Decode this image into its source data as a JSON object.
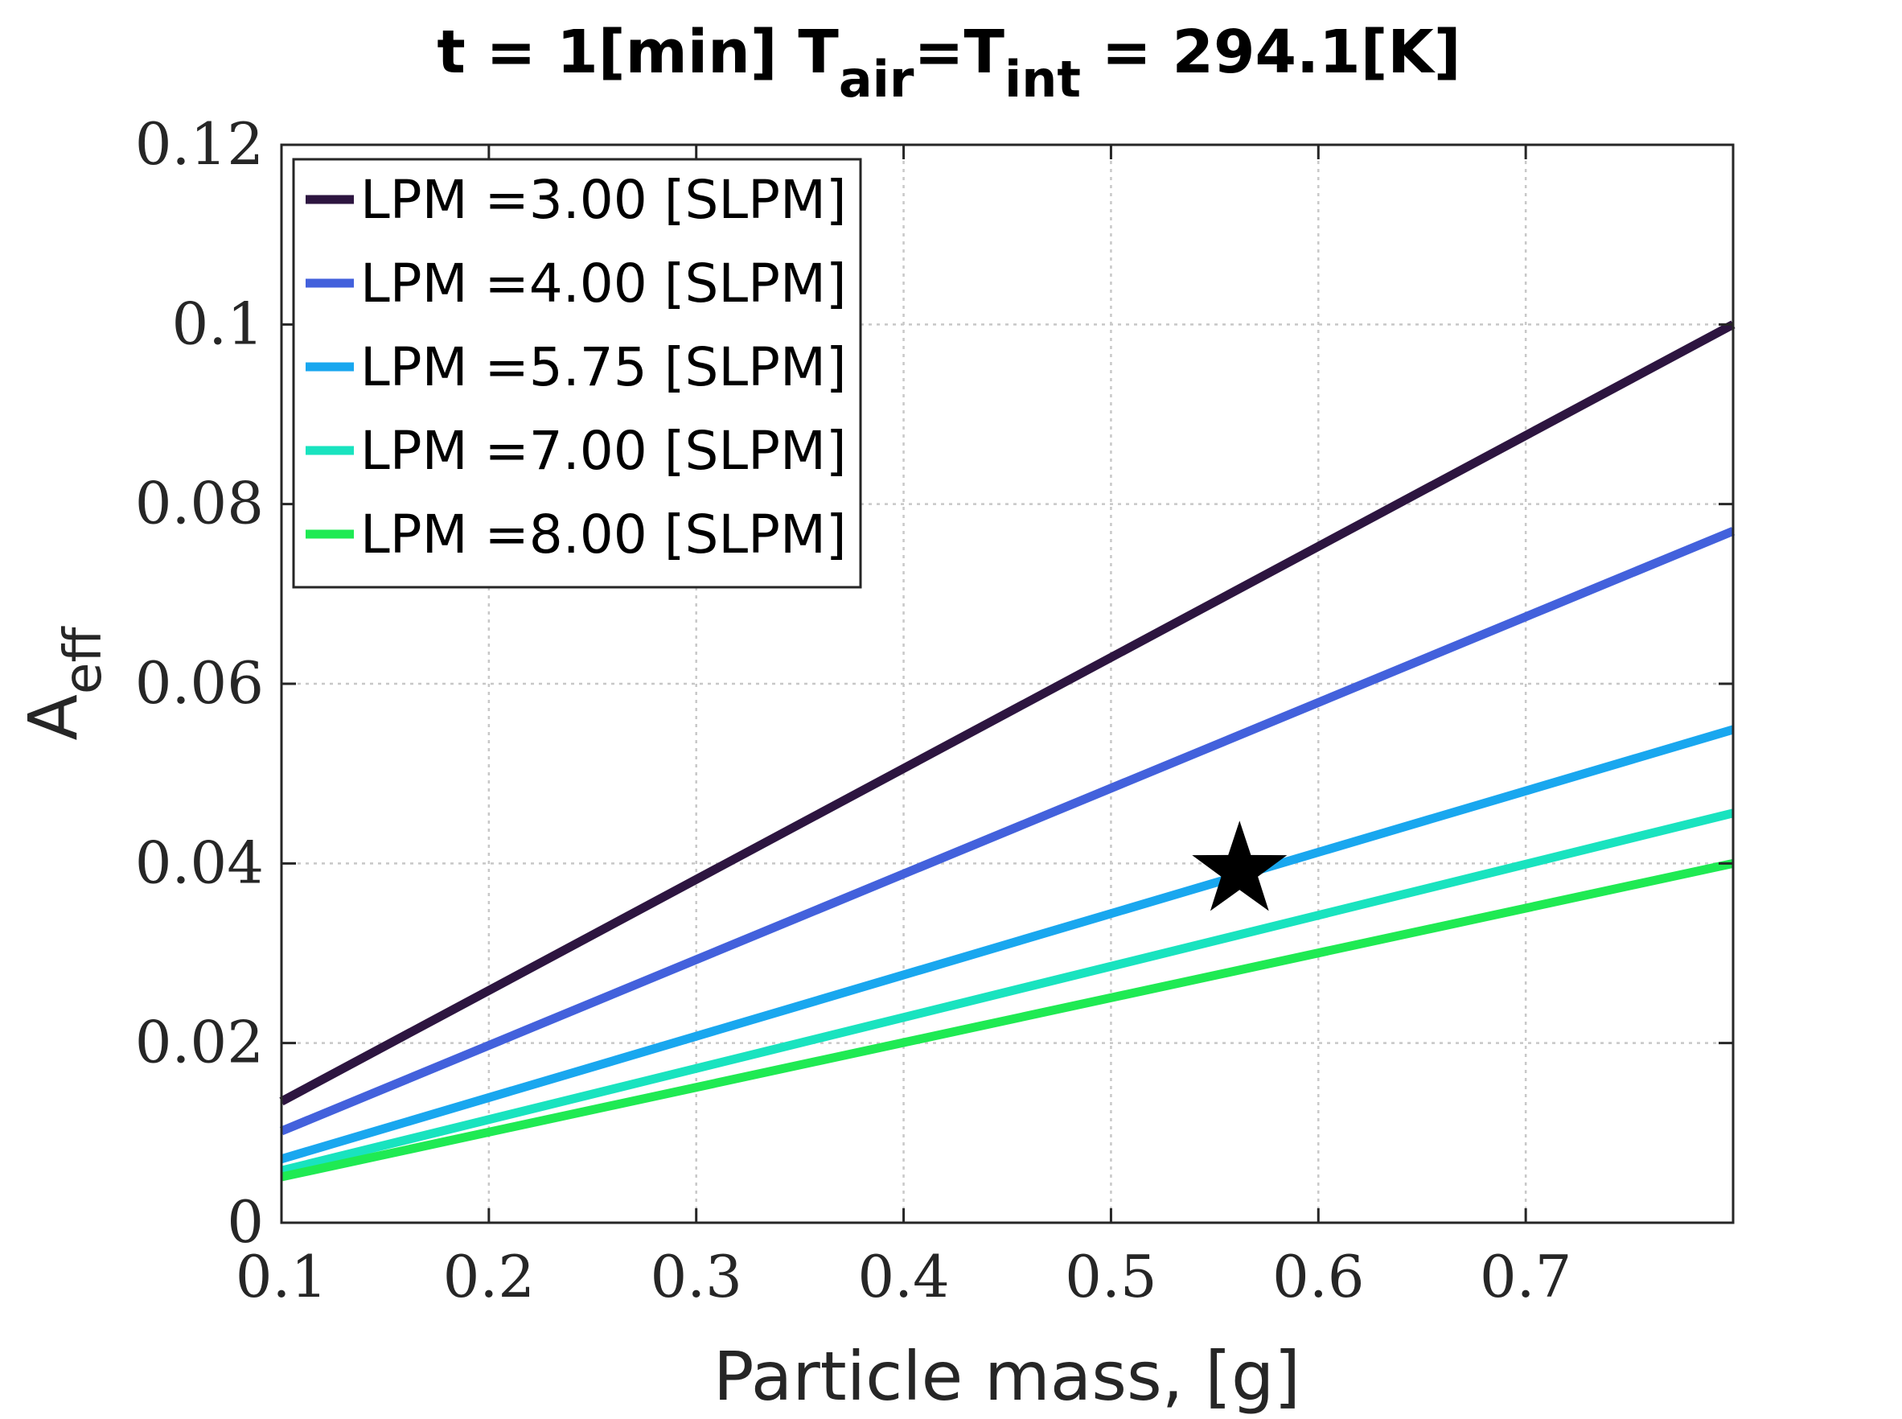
{
  "chart_data": {
    "type": "line",
    "title": {
      "main": "t = 1[min] T",
      "sub1": "air",
      "mid": "=T",
      "sub2": "int",
      "tail": " = 294.1[K]"
    },
    "xlabel": "Particle mass, [g]",
    "ylabel": {
      "base": "A",
      "sub": "eff"
    },
    "xlim": [
      0.1,
      0.8
    ],
    "ylim": [
      0,
      0.12
    ],
    "x_ticks": [
      0.1,
      0.2,
      0.3,
      0.4,
      0.5,
      0.6,
      0.7
    ],
    "x_tick_labels": [
      "0.1",
      "0.2",
      "0.3",
      "0.4",
      "0.5",
      "0.6",
      "0.7"
    ],
    "y_ticks": [
      0,
      0.02,
      0.04,
      0.06,
      0.08,
      0.1,
      0.12
    ],
    "y_tick_labels": [
      "0",
      "0.02",
      "0.04",
      "0.06",
      "0.08",
      "0.1",
      "0.12"
    ],
    "grid": true,
    "legend_position": "top-left",
    "series": [
      {
        "name": "LPM =3.00 [SLPM]",
        "color": "#2d1540",
        "x": [
          0.1,
          0.8
        ],
        "y": [
          0.0135,
          0.1
        ]
      },
      {
        "name": "LPM =4.00 [SLPM]",
        "color": "#4361dc",
        "x": [
          0.1,
          0.8
        ],
        "y": [
          0.0102,
          0.077
        ]
      },
      {
        "name": "LPM =5.75 [SLPM]",
        "color": "#19a7ef",
        "x": [
          0.1,
          0.8
        ],
        "y": [
          0.0071,
          0.0549
        ]
      },
      {
        "name": "LPM =7.00 [SLPM]",
        "color": "#19e3bf",
        "x": [
          0.1,
          0.8
        ],
        "y": [
          0.0058,
          0.0456
        ]
      },
      {
        "name": "LPM =8.00 [SLPM]",
        "color": "#1fea53",
        "x": [
          0.1,
          0.8
        ],
        "y": [
          0.0051,
          0.04
        ]
      }
    ],
    "marker": {
      "shape": "star",
      "color": "#000000",
      "x": 0.562,
      "y": 0.0392
    }
  }
}
